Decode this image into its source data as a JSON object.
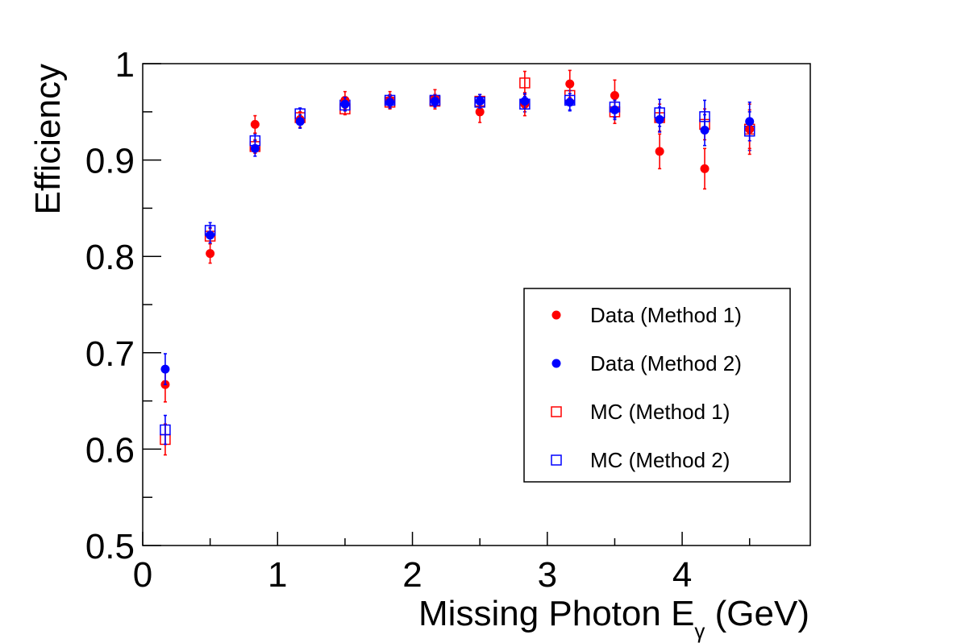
{
  "chart_data": {
    "type": "scatter",
    "title": "",
    "xlabel": "Missing Photon E",
    "xlabel_subscript": "γ",
    "xlabel_unit": " (GeV)",
    "ylabel": "Efficiency",
    "xlim": [
      0,
      4.95
    ],
    "ylim": [
      0.5,
      1.0
    ],
    "x_ticks": [
      0,
      1,
      2,
      3,
      4
    ],
    "y_ticks": [
      0.5,
      0.6,
      0.7,
      0.8,
      0.9,
      1
    ],
    "y_tick_labels": [
      "0.5",
      "0.6",
      "0.7",
      "0.8",
      "0.9",
      "1"
    ],
    "x_minor_step": 0.5,
    "y_minor_step": 0.05,
    "grid": false,
    "legend_position": "right-middle",
    "x": [
      0.167,
      0.5,
      0.833,
      1.167,
      1.5,
      1.833,
      2.167,
      2.5,
      2.833,
      3.167,
      3.5,
      3.833,
      4.167,
      4.5
    ],
    "series": [
      {
        "name": "Data (Method 1)",
        "marker": "filled-circle",
        "color": "#ff0000",
        "values": [
          0.667,
          0.803,
          0.937,
          0.942,
          0.962,
          0.962,
          0.963,
          0.95,
          0.958,
          0.979,
          0.967,
          0.909,
          0.891,
          0.932
        ],
        "errors": [
          0.018,
          0.01,
          0.009,
          0.008,
          0.009,
          0.009,
          0.01,
          0.011,
          0.012,
          0.014,
          0.016,
          0.018,
          0.021,
          0.026
        ]
      },
      {
        "name": "Data (Method 2)",
        "marker": "filled-circle",
        "color": "#0000ff",
        "values": [
          0.683,
          0.822,
          0.912,
          0.94,
          0.958,
          0.96,
          0.961,
          0.961,
          0.961,
          0.96,
          0.952,
          0.942,
          0.931,
          0.94
        ],
        "errors": [
          0.016,
          0.008,
          0.008,
          0.007,
          0.007,
          0.006,
          0.006,
          0.007,
          0.008,
          0.009,
          0.01,
          0.013,
          0.016,
          0.02
        ]
      },
      {
        "name": "MC (Method 1)",
        "marker": "open-square",
        "color": "#ff0000",
        "values": [
          0.61,
          0.821,
          0.914,
          0.944,
          0.953,
          0.96,
          0.961,
          0.961,
          0.98,
          0.967,
          0.95,
          0.944,
          0.937,
          0.932
        ],
        "errors": [
          0.016,
          0.008,
          0.007,
          0.006,
          0.006,
          0.006,
          0.006,
          0.007,
          0.012,
          0.01,
          0.012,
          0.014,
          0.016,
          0.02
        ]
      },
      {
        "name": "MC (Method 2)",
        "marker": "open-square",
        "color": "#0000ff",
        "values": [
          0.62,
          0.827,
          0.92,
          0.948,
          0.957,
          0.962,
          0.962,
          0.96,
          0.958,
          0.962,
          0.955,
          0.949,
          0.945,
          0.93
        ],
        "errors": [
          0.015,
          0.008,
          0.007,
          0.006,
          0.006,
          0.006,
          0.006,
          0.006,
          0.008,
          0.01,
          0.011,
          0.014,
          0.017,
          0.02
        ]
      }
    ]
  }
}
